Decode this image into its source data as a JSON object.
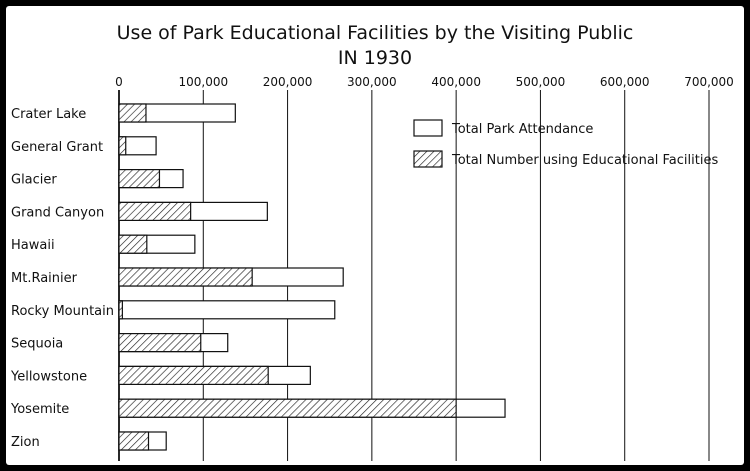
{
  "chart_data": {
    "type": "bar",
    "orientation": "horizontal",
    "title": "Use of Park Educational Facilities by the Visiting Public",
    "subtitle": "IN 1930",
    "xlim": [
      0,
      700000
    ],
    "x_ticks": [
      {
        "value": 0,
        "label": "0"
      },
      {
        "value": 100000,
        "label": "100,000"
      },
      {
        "value": 200000,
        "label": "200,000"
      },
      {
        "value": 300000,
        "label": "300,000"
      },
      {
        "value": 400000,
        "label": "400,000"
      },
      {
        "value": 500000,
        "label": "500,000"
      },
      {
        "value": 600000,
        "label": "600,000"
      },
      {
        "value": 700000,
        "label": "700,000"
      }
    ],
    "grid": "vertical lines",
    "legend_position": "top-right",
    "categories": [
      "Crater Lake",
      "General Grant",
      "Glacier",
      "Grand Canyon",
      "Hawaii",
      "Mt.Rainier",
      "Rocky Mountain",
      "Sequoia",
      "Yellowstone",
      "Yosemite",
      "Zion"
    ],
    "series": [
      {
        "name": "Total Park Attendance",
        "fill": "white",
        "values": [
          138000,
          44000,
          76000,
          176000,
          90000,
          266000,
          256000,
          129000,
          227000,
          458000,
          56000
        ]
      },
      {
        "name": "Total Number using Educational Facilities",
        "fill": "hatched",
        "values": [
          32000,
          8000,
          48000,
          85000,
          33000,
          158000,
          4000,
          97000,
          177000,
          400000,
          35000
        ]
      }
    ]
  },
  "colors": {
    "frame": "#000000",
    "background": "#ffffff",
    "ink": "#111111"
  }
}
